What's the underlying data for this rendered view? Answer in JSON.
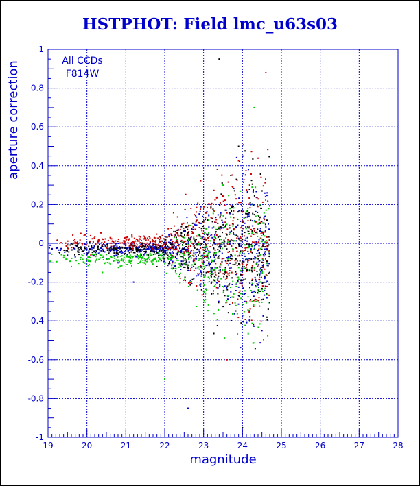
{
  "chart_data": {
    "type": "scatter",
    "title": "HSTPHOT: Field lmc_u63s03",
    "xlabel": "magnitude",
    "ylabel": "aperture correction",
    "xlim": [
      19,
      28
    ],
    "ylim": [
      -1,
      1
    ],
    "x_ticks": [
      19,
      20,
      21,
      22,
      23,
      24,
      25,
      26,
      27,
      28
    ],
    "y_ticks": [
      -1,
      -0.8,
      -0.6,
      -0.4,
      -0.2,
      0,
      0.2,
      0.4,
      0.6,
      0.8,
      1
    ],
    "x_tick_labels": [
      "19",
      "20",
      "21",
      "22",
      "23",
      "24",
      "25",
      "26",
      "27",
      "28"
    ],
    "y_tick_labels": [
      "-1",
      "-0.8",
      "-0.6",
      "-0.4",
      "-0.2",
      "0",
      "0.2",
      "0.4",
      "0.6",
      "0.8",
      "1"
    ],
    "grid": true,
    "annotations": [
      "All CCDs",
      "F814W"
    ],
    "colors": {
      "axis": "#0000cc",
      "grid": "#0000cc",
      "points": [
        "#000000",
        "#cc0000",
        "#00cc00",
        "#0000cc"
      ]
    },
    "series_description_points": [
      {
        "x": 19.1,
        "y": -0.03
      },
      {
        "x": 19.3,
        "y": -0.05
      },
      {
        "x": 19.5,
        "y": -0.02
      },
      {
        "x": 19.7,
        "y": -0.07
      },
      {
        "x": 19.9,
        "y": -0.04
      },
      {
        "x": 20.1,
        "y": -0.06
      },
      {
        "x": 20.3,
        "y": -0.03
      },
      {
        "x": 20.5,
        "y": -0.08
      },
      {
        "x": 20.7,
        "y": -0.05
      },
      {
        "x": 20.9,
        "y": -0.02
      },
      {
        "x": 21.1,
        "y": -0.07
      },
      {
        "x": 21.3,
        "y": -0.04
      },
      {
        "x": 21.5,
        "y": -0.09
      },
      {
        "x": 21.7,
        "y": -0.03
      },
      {
        "x": 21.9,
        "y": -0.06
      },
      {
        "x": 22.1,
        "y": -0.02
      },
      {
        "x": 22.3,
        "y": 0.03
      },
      {
        "x": 22.5,
        "y": -0.05
      },
      {
        "x": 22.7,
        "y": 0.05
      },
      {
        "x": 22.9,
        "y": -0.08
      },
      {
        "x": 23.1,
        "y": 0.12
      },
      {
        "x": 23.3,
        "y": -0.15
      },
      {
        "x": 23.5,
        "y": 0.3
      },
      {
        "x": 23.7,
        "y": -0.25
      },
      {
        "x": 23.9,
        "y": 0.5
      },
      {
        "x": 24.1,
        "y": -0.3
      },
      {
        "x": 24.3,
        "y": 0.7
      },
      {
        "x": 24.5,
        "y": -0.45
      },
      {
        "x": 23.4,
        "y": 0.95
      },
      {
        "x": 23.6,
        "y": -0.6
      },
      {
        "x": 22.0,
        "y": -0.7
      },
      {
        "x": 22.6,
        "y": -0.85
      },
      {
        "x": 24.0,
        "y": -0.95
      },
      {
        "x": 24.6,
        "y": 0.88
      },
      {
        "x": 20.4,
        "y": -0.15
      },
      {
        "x": 21.2,
        "y": -0.2
      },
      {
        "x": 21.8,
        "y": -0.12
      },
      {
        "x": 22.4,
        "y": -0.18
      },
      {
        "x": 19.6,
        "y": -0.12
      },
      {
        "x": 20.8,
        "y": -0.1
      }
    ]
  }
}
